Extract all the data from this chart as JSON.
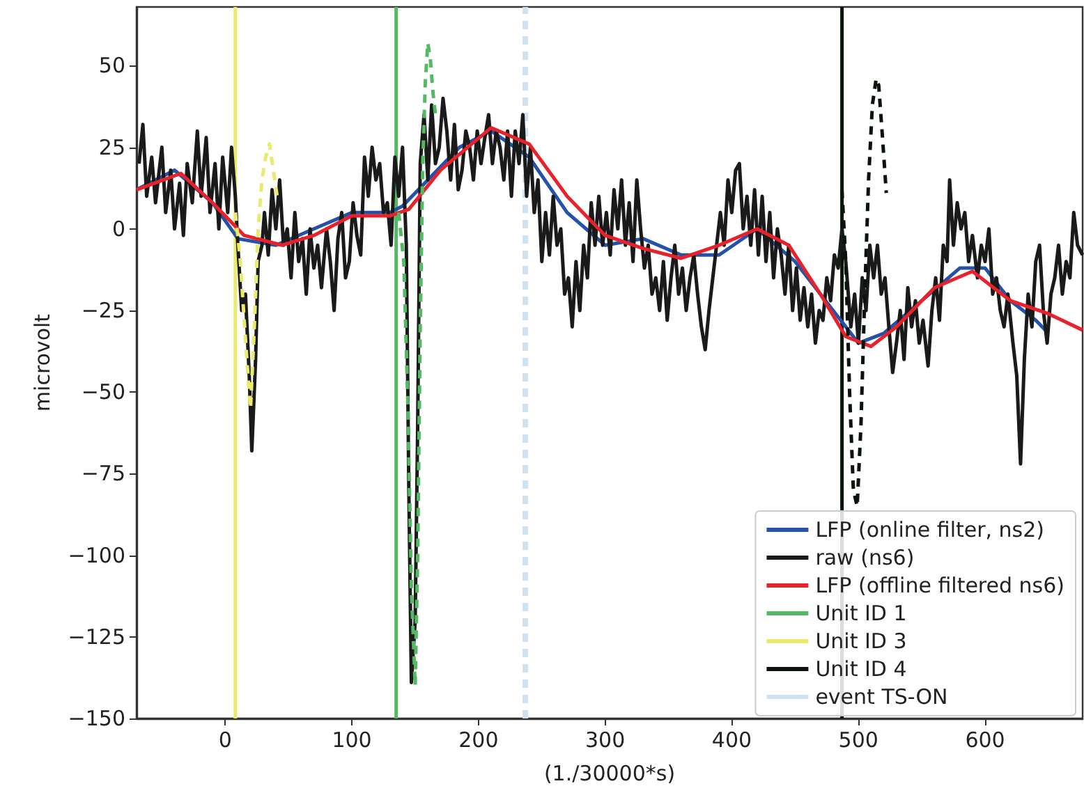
{
  "chart_data": {
    "type": "line",
    "xlabel": "(1./30000*s)",
    "ylabel": "microvolt",
    "xlim": [
      -70,
      677
    ],
    "ylim": [
      -150,
      68
    ],
    "xticks": [
      0,
      100,
      200,
      300,
      400,
      500,
      600
    ],
    "yticks": [
      -150,
      -125,
      -100,
      -75,
      -50,
      -25,
      0,
      25,
      50
    ],
    "grid": false,
    "legend": "bottom right",
    "marker": "none",
    "line_style": "solid",
    "series": [
      {
        "name": "LFP (online filter, ns2)",
        "color": "#2452a8",
        "x": [
          -70,
          -40,
          -10,
          10,
          40,
          70,
          100,
          130,
          140,
          160,
          185,
          210,
          240,
          270,
          300,
          330,
          360,
          390,
          420,
          450,
          480,
          500,
          520,
          550,
          580,
          600,
          620,
          640,
          650
        ],
        "values": [
          12,
          18,
          8,
          -3,
          -5,
          0,
          5,
          5,
          7,
          15,
          25,
          30,
          22,
          5,
          -5,
          -3,
          -8,
          -8,
          0,
          -10,
          -25,
          -35,
          -32,
          -22,
          -12,
          -12,
          -22,
          -28,
          -32
        ]
      },
      {
        "name": "raw (ns6)",
        "color": "#1a1a1a",
        "x": [
          -68,
          -65,
          -62,
          -58,
          -55,
          -50,
          -47,
          -43,
          -40,
          -36,
          -33,
          -30,
          -26,
          -22,
          -19,
          -15,
          -12,
          -8,
          -5,
          -2,
          2,
          5,
          8,
          10,
          13,
          16,
          19,
          21,
          24,
          26,
          29,
          31,
          34,
          37,
          40,
          43,
          46,
          49,
          52,
          55,
          58,
          61,
          64,
          67,
          70,
          73,
          76,
          80,
          83,
          86,
          89,
          92,
          95,
          98,
          101,
          104,
          107,
          110,
          113,
          116,
          119,
          122,
          125,
          128,
          131,
          134,
          137,
          140,
          143,
          145,
          147,
          150,
          152,
          154,
          157,
          160,
          163,
          166,
          169,
          172,
          175,
          178,
          181,
          184,
          187,
          190,
          193,
          196,
          199,
          202,
          205,
          208,
          211,
          214,
          217,
          220,
          223,
          226,
          229,
          232,
          235,
          238,
          241,
          244,
          247,
          250,
          253,
          256,
          259,
          262,
          265,
          268,
          271,
          274,
          277,
          280,
          283,
          286,
          289,
          292,
          295,
          298,
          301,
          304,
          307,
          310,
          313,
          316,
          319,
          322,
          325,
          328,
          331,
          334,
          337,
          340,
          343,
          346,
          349,
          352,
          355,
          358,
          361,
          364,
          367,
          370,
          373,
          376,
          379,
          382,
          385,
          388,
          391,
          394,
          397,
          400,
          403,
          406,
          409,
          412,
          415,
          418,
          421,
          424,
          427,
          430,
          433,
          436,
          439,
          442,
          445,
          448,
          451,
          454,
          457,
          460,
          463,
          466,
          469,
          472,
          475,
          478,
          481,
          484,
          487,
          490,
          494,
          497,
          500,
          503,
          506,
          509,
          512,
          515,
          518,
          521,
          524,
          527,
          530,
          533,
          536,
          539,
          542,
          545,
          548,
          551,
          555,
          558,
          561,
          564,
          567,
          570,
          572,
          575,
          578,
          581,
          584,
          587,
          590,
          594,
          597,
          600,
          603,
          606,
          609,
          612,
          615,
          618,
          622,
          625,
          628,
          631,
          634,
          637,
          640,
          643,
          646,
          649,
          652,
          655,
          658,
          661,
          664,
          667,
          670,
          673,
          677
        ],
        "values": [
          20,
          32,
          10,
          22,
          8,
          25,
          5,
          18,
          0,
          14,
          -2,
          20,
          8,
          30,
          10,
          28,
          5,
          20,
          0,
          22,
          5,
          25,
          10,
          -5,
          -25,
          -20,
          -45,
          -68,
          -40,
          -10,
          -5,
          5,
          -8,
          12,
          0,
          15,
          -5,
          0,
          -15,
          5,
          -10,
          -3,
          -20,
          0,
          -12,
          -5,
          -18,
          0,
          -10,
          -25,
          -3,
          5,
          -15,
          -10,
          8,
          -2,
          -8,
          22,
          10,
          25,
          15,
          20,
          5,
          8,
          -5,
          22,
          10,
          25,
          -5,
          -80,
          -139,
          -120,
          -60,
          20,
          35,
          15,
          38,
          20,
          25,
          40,
          30,
          15,
          32,
          12,
          18,
          30,
          25,
          15,
          30,
          20,
          28,
          35,
          20,
          30,
          25,
          15,
          30,
          10,
          30,
          20,
          35,
          10,
          25,
          5,
          15,
          -10,
          5,
          -8,
          10,
          -5,
          0,
          -20,
          -15,
          -30,
          -10,
          -25,
          -5,
          -15,
          8,
          -5,
          10,
          -5,
          5,
          -8,
          12,
          0,
          15,
          -5,
          8,
          -10,
          15,
          0,
          -12,
          -5,
          -20,
          -15,
          -25,
          -10,
          -28,
          -15,
          -5,
          -20,
          -12,
          -25,
          -15,
          -8,
          -20,
          -30,
          -37,
          -25,
          -15,
          -5,
          5,
          -5,
          15,
          5,
          18,
          20,
          0,
          10,
          -5,
          12,
          -8,
          10,
          -10,
          5,
          -15,
          0,
          -8,
          -20,
          -5,
          -25,
          -12,
          -28,
          -18,
          -30,
          -20,
          -35,
          -25,
          -28,
          -15,
          -22,
          -8,
          -12,
          0,
          -10,
          -30,
          -20,
          -35,
          -15,
          -25,
          -5,
          -15,
          -5,
          -20,
          -15,
          -30,
          -44,
          -35,
          -25,
          -40,
          -18,
          -30,
          -22,
          -35,
          -28,
          -42,
          -25,
          -15,
          -28,
          -5,
          -10,
          15,
          -5,
          8,
          0,
          5,
          -10,
          -2,
          -15,
          -5,
          -10,
          0,
          -20,
          -15,
          -25,
          -30,
          -20,
          -35,
          -45,
          -72,
          -40,
          -20,
          -30,
          -10,
          -5,
          -25,
          -35,
          -20,
          -15,
          -5,
          -20,
          -10,
          -15,
          5,
          -5,
          -8
        ]
      },
      {
        "name": "LFP (offline filtered ns6)",
        "color": "#e8222a",
        "x": [
          -70,
          -35,
          -10,
          15,
          45,
          70,
          100,
          130,
          145,
          170,
          210,
          240,
          270,
          300,
          330,
          360,
          390,
          420,
          445,
          470,
          490,
          510,
          530,
          560,
          590,
          620,
          650,
          677
        ],
        "values": [
          12,
          17,
          8,
          -2,
          -5,
          -2,
          4,
          4,
          6,
          18,
          31,
          26,
          10,
          -2,
          -6,
          -9,
          -5,
          0,
          -5,
          -20,
          -33,
          -36,
          -30,
          -18,
          -13,
          -22,
          -26,
          -31
        ]
      },
      {
        "name": "Unit ID 1",
        "color": "#55b963",
        "x": [
          135,
          135
        ],
        "values": [
          -150,
          68
        ]
      },
      {
        "name": "Unit ID 3",
        "color": "#eaea6e",
        "x": [
          8,
          8
        ],
        "values": [
          -150,
          68
        ]
      },
      {
        "name": "Unit ID 4",
        "color": "#0a140a",
        "x": [
          487,
          487
        ],
        "values": [
          -150,
          68
        ]
      },
      {
        "name": "event TS-ON",
        "color": "#cfe2f2",
        "line_style": "dashed",
        "x": [
          237,
          237
        ],
        "values": [
          -150,
          68
        ]
      },
      {
        "color": "#55b963",
        "line_style": "dashed",
        "x": [
          137,
          141,
          144,
          147,
          150,
          152,
          154,
          156,
          158,
          160,
          162,
          164,
          166
        ],
        "values": [
          5,
          -10,
          -50,
          -110,
          -140,
          -100,
          -30,
          20,
          45,
          57,
          52,
          42,
          35
        ]
      },
      {
        "color": "#eaea6e",
        "line_style": "dashed",
        "x": [
          8,
          12,
          15,
          18,
          20,
          23,
          26,
          29,
          32,
          35,
          38,
          41
        ],
        "values": [
          5,
          -10,
          -28,
          -45,
          -55,
          -30,
          0,
          15,
          22,
          26,
          18,
          10
        ]
      },
      {
        "color": "#0a140a",
        "line_style": "dashed",
        "x": [
          487,
          490,
          493,
          496,
          499,
          502,
          505,
          508,
          511,
          514,
          516,
          519,
          522
        ],
        "values": [
          12,
          -10,
          -50,
          -80,
          -85,
          -60,
          -20,
          15,
          38,
          46,
          44,
          28,
          11
        ]
      }
    ]
  }
}
